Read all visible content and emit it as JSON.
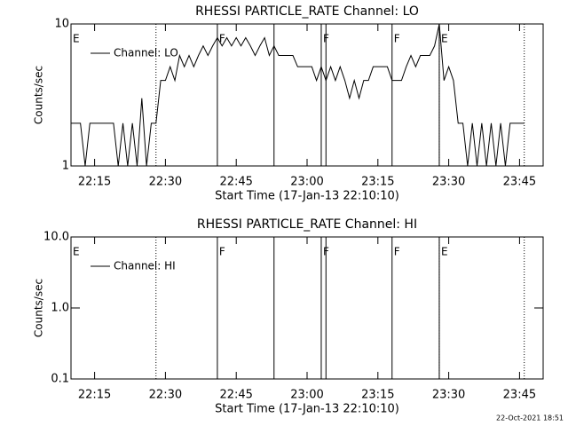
{
  "chart_data": [
    {
      "type": "line",
      "title": "RHESSI PARTICLE_RATE Channel: LO",
      "xlabel": "Start Time (17-Jan-13 22:10:10)",
      "ylabel": "Counts/sec",
      "x": [
        "22:10",
        "22:11",
        "22:12",
        "22:13",
        "22:14",
        "22:15",
        "22:16",
        "22:17",
        "22:18",
        "22:19",
        "22:20",
        "22:21",
        "22:22",
        "22:23",
        "22:24",
        "22:25",
        "22:26",
        "22:27",
        "22:28",
        "22:29",
        "22:30",
        "22:31",
        "22:32",
        "22:33",
        "22:34",
        "22:35",
        "22:36",
        "22:37",
        "22:38",
        "22:39",
        "22:40",
        "22:41",
        "22:42",
        "22:43",
        "22:44",
        "22:45",
        "22:46",
        "22:47",
        "22:48",
        "22:49",
        "22:50",
        "22:51",
        "22:52",
        "22:53",
        "22:54",
        "22:55",
        "22:56",
        "22:57",
        "22:58",
        "22:59",
        "23:00",
        "23:01",
        "23:02",
        "23:03",
        "23:04",
        "23:05",
        "23:06",
        "23:07",
        "23:08",
        "23:09",
        "23:10",
        "23:11",
        "23:12",
        "23:13",
        "23:14",
        "23:15",
        "23:16",
        "23:17",
        "23:18",
        "23:19",
        "23:20",
        "23:21",
        "23:22",
        "23:23",
        "23:24",
        "23:25",
        "23:26",
        "23:27",
        "23:28",
        "23:29",
        "23:30",
        "23:31",
        "23:32",
        "23:33",
        "23:34",
        "23:35",
        "23:36",
        "23:37",
        "23:38",
        "23:39",
        "23:40",
        "23:41",
        "23:42",
        "23:43",
        "23:44",
        "23:45",
        "23:46"
      ],
      "series": [
        {
          "name": "Channel: LO",
          "color": "#000000",
          "values": [
            2,
            2,
            2,
            1,
            2,
            2,
            2,
            2,
            2,
            2,
            1,
            2,
            1,
            2,
            1,
            3,
            1,
            2,
            2,
            4,
            4,
            5,
            4,
            6,
            5,
            6,
            5,
            6,
            7,
            6,
            7,
            8,
            7,
            8,
            7,
            8,
            7,
            8,
            7,
            6,
            7,
            8,
            6,
            7,
            6,
            6,
            6,
            6,
            5,
            5,
            5,
            5,
            4,
            5,
            4,
            5,
            4,
            5,
            4,
            3,
            4,
            3,
            4,
            4,
            5,
            5,
            5,
            5,
            4,
            4,
            4,
            5,
            6,
            5,
            6,
            6,
            6,
            7,
            10,
            4,
            5,
            4,
            2,
            2,
            1,
            2,
            1,
            2,
            1,
            2,
            1,
            2,
            1,
            2,
            2,
            2,
            2
          ]
        }
      ],
      "xlim": [
        "22:10",
        "23:50"
      ],
      "xticks": [
        "22:15",
        "22:30",
        "22:45",
        "23:00",
        "23:15",
        "23:30",
        "23:45"
      ],
      "ylim": [
        1,
        10
      ],
      "yticks": [
        1,
        10
      ],
      "log_y": true,
      "legend": "upper left",
      "markers": [
        {
          "time": "22:28",
          "style": "dotted"
        },
        {
          "time": "22:41",
          "style": "solid"
        },
        {
          "time": "22:53",
          "style": "solid"
        },
        {
          "time": "23:03",
          "style": "solid"
        },
        {
          "time": "23:04",
          "style": "solid"
        },
        {
          "time": "23:18",
          "style": "solid"
        },
        {
          "time": "23:28",
          "style": "solid"
        },
        {
          "time": "23:28",
          "style": "dotted"
        },
        {
          "time": "23:46",
          "style": "dotted"
        }
      ],
      "flags": [
        {
          "time": "22:10",
          "label": "E"
        },
        {
          "time": "22:41",
          "label": "F"
        },
        {
          "time": "23:03",
          "label": "F"
        },
        {
          "time": "23:18",
          "label": "F"
        },
        {
          "time": "23:28",
          "label": "E"
        }
      ]
    },
    {
      "type": "line",
      "title": "RHESSI PARTICLE_RATE Channel: HI",
      "xlabel": "Start Time (17-Jan-13 22:10:10)",
      "ylabel": "Counts/sec",
      "x": [],
      "series": [
        {
          "name": "Channel: HI",
          "color": "#000000",
          "values": []
        }
      ],
      "xlim": [
        "22:10",
        "23:50"
      ],
      "xticks": [
        "22:15",
        "22:30",
        "22:45",
        "23:00",
        "23:15",
        "23:30",
        "23:45"
      ],
      "ylim": [
        0.1,
        10
      ],
      "yticks": [
        0.1,
        {
          "value": 1,
          "label": "1.0"
        },
        {
          "value": 10,
          "label": "10.0"
        }
      ],
      "log_y": true,
      "legend": "upper left",
      "markers": [
        {
          "time": "22:28",
          "style": "dotted"
        },
        {
          "time": "22:41",
          "style": "solid"
        },
        {
          "time": "22:53",
          "style": "solid"
        },
        {
          "time": "23:03",
          "style": "solid"
        },
        {
          "time": "23:04",
          "style": "solid"
        },
        {
          "time": "23:18",
          "style": "solid"
        },
        {
          "time": "23:28",
          "style": "solid"
        },
        {
          "time": "23:28",
          "style": "dotted"
        },
        {
          "time": "23:46",
          "style": "dotted"
        }
      ],
      "flags": [
        {
          "time": "22:10",
          "label": "E"
        },
        {
          "time": "22:41",
          "label": "F"
        },
        {
          "time": "23:03",
          "label": "F"
        },
        {
          "time": "23:18",
          "label": "F"
        },
        {
          "time": "23:28",
          "label": "E"
        }
      ]
    }
  ],
  "footer": "22-Oct-2021 18:51"
}
